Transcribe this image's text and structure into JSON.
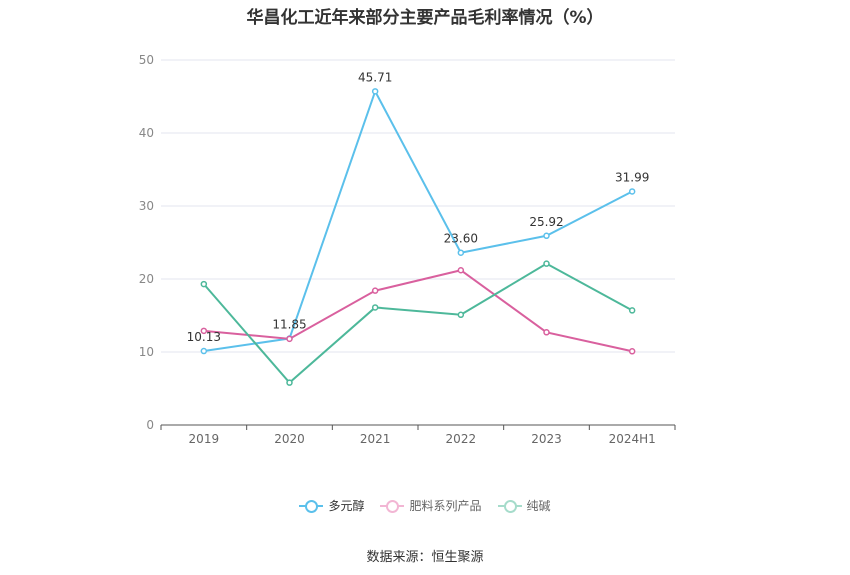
{
  "chart_data": {
    "type": "line",
    "title": "华昌化工近年来部分主要产品毛利率情况（%）",
    "categories": [
      "2019",
      "2020",
      "2021",
      "2022",
      "2023",
      "2024H1"
    ],
    "ylim": [
      0,
      50
    ],
    "yticks": [
      0,
      10,
      20,
      30,
      40,
      50
    ],
    "xlabel": "",
    "ylabel": "",
    "grid": true,
    "legend_position": "bottom",
    "series": [
      {
        "name": "多元醇",
        "color": "#5bc0eb",
        "values": [
          10.13,
          11.85,
          45.71,
          23.6,
          25.92,
          31.99
        ],
        "labels": [
          "10.13",
          "11.85",
          "45.71",
          "23.60",
          "25.92",
          "31.99"
        ]
      },
      {
        "name": "肥料系列产品",
        "color": "#d9609e",
        "values": [
          12.9,
          11.8,
          18.4,
          21.2,
          12.7,
          10.1
        ]
      },
      {
        "name": "纯碱",
        "color": "#4db89a",
        "values": [
          19.3,
          5.8,
          16.1,
          15.1,
          22.1,
          15.7
        ]
      }
    ]
  },
  "source": "数据来源：恒生聚源"
}
